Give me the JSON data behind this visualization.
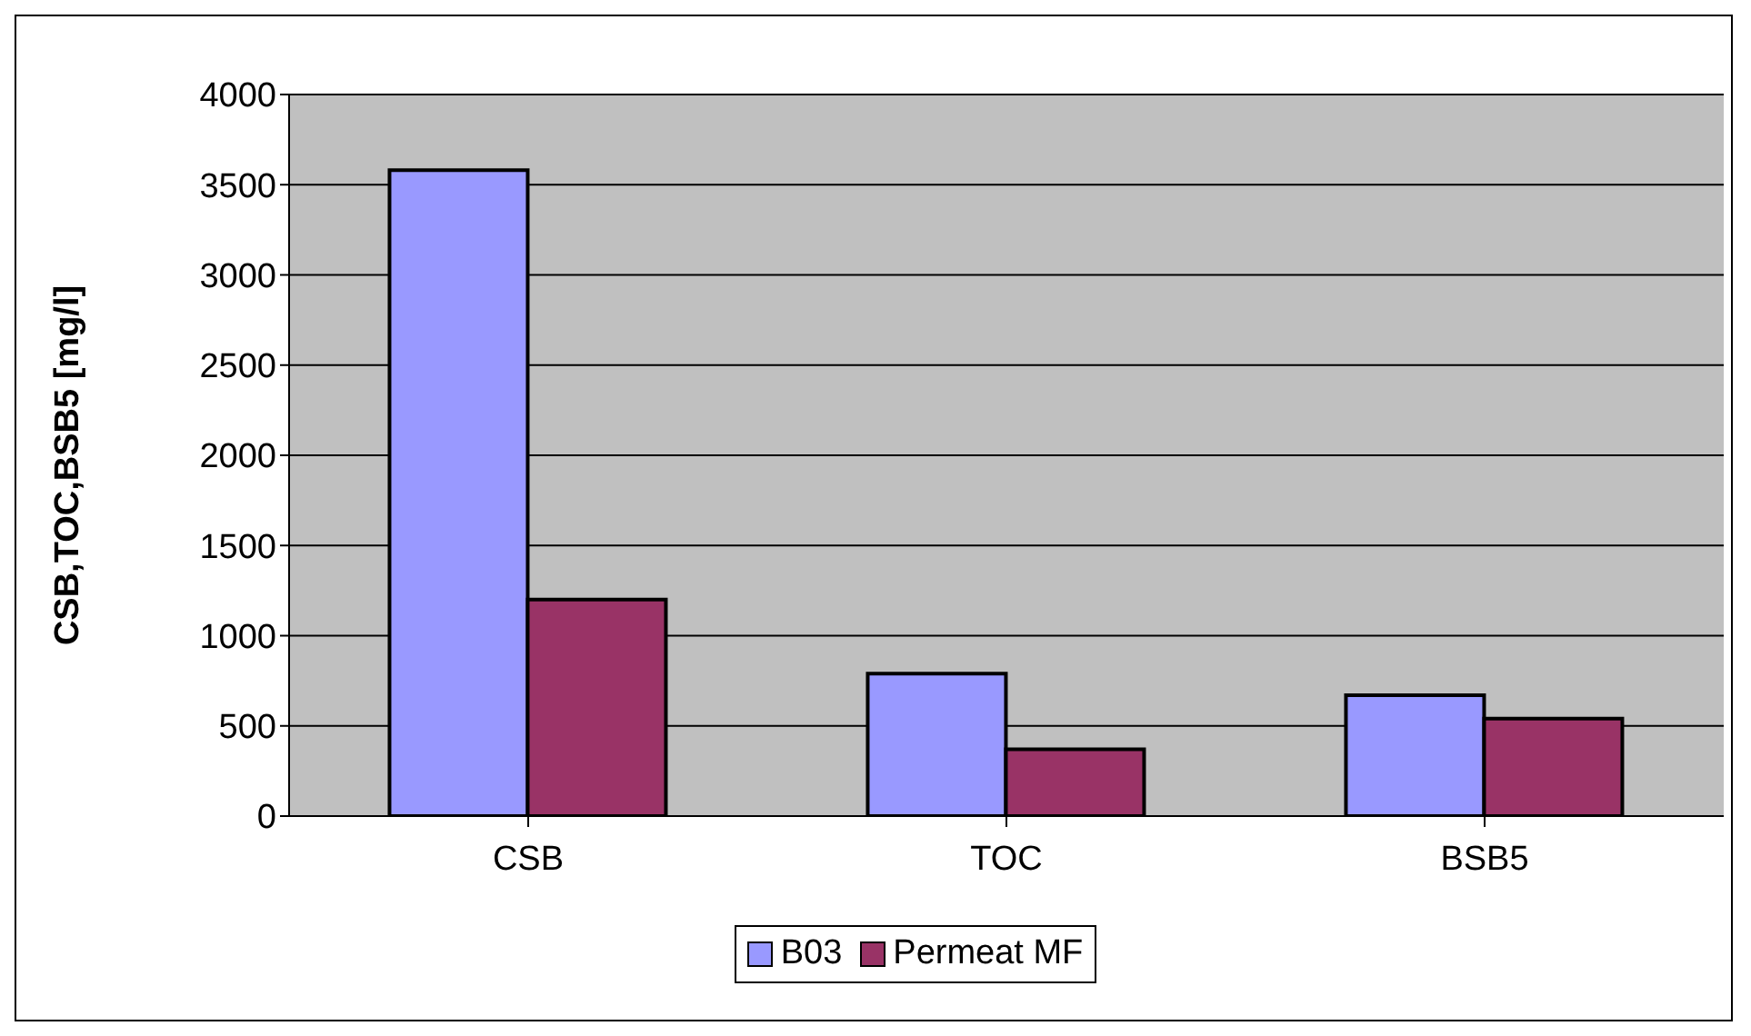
{
  "chart_data": {
    "type": "bar",
    "ylabel": "CSB,TOC,BSB5 [mg/l]",
    "categories": [
      "CSB",
      "TOC",
      "BSB5"
    ],
    "series": [
      {
        "name": "B03",
        "color": "#9999ff",
        "values": [
          3580,
          790,
          670
        ]
      },
      {
        "name": "Permeat MF",
        "color": "#993366",
        "values": [
          1200,
          370,
          540
        ]
      }
    ],
    "ylim": [
      0,
      4000
    ],
    "yticks": [
      0,
      500,
      1000,
      1500,
      2000,
      2500,
      3000,
      3500,
      4000
    ],
    "grid": "y",
    "legend": "bottom"
  }
}
